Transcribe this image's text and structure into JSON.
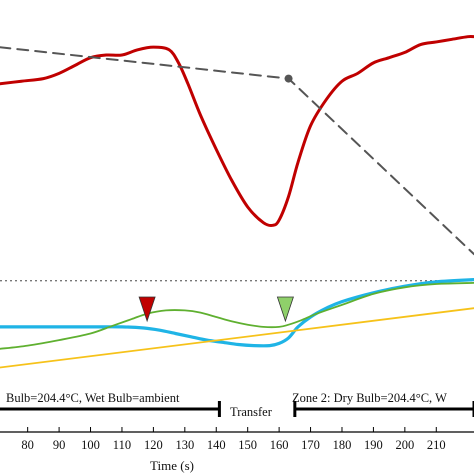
{
  "chart_data": {
    "type": "line",
    "title": "",
    "xlabel": "Time (s)",
    "ylabel": "",
    "xlim": [
      71.2,
      222
    ],
    "x_ticks": [
      80,
      90,
      100,
      110,
      120,
      130,
      140,
      150,
      160,
      170,
      180,
      190,
      200,
      210
    ],
    "grid": false,
    "upper_panel": {
      "ylim": [
        0,
        1
      ],
      "series": [
        {
          "color": "#c00000",
          "style": "solid",
          "x": [
            71,
            78,
            85,
            90,
            95,
            100,
            105,
            110,
            115,
            120,
            125,
            128,
            131,
            135,
            140,
            145,
            150,
            155,
            158,
            160,
            163,
            166,
            170,
            175,
            180,
            185,
            190,
            195,
            200,
            205,
            210,
            215,
            220,
            222
          ],
          "y": [
            0.68,
            0.69,
            0.7,
            0.72,
            0.75,
            0.78,
            0.79,
            0.79,
            0.81,
            0.82,
            0.81,
            0.76,
            0.68,
            0.56,
            0.43,
            0.31,
            0.21,
            0.15,
            0.14,
            0.16,
            0.25,
            0.38,
            0.52,
            0.62,
            0.69,
            0.72,
            0.76,
            0.78,
            0.8,
            0.83,
            0.84,
            0.85,
            0.86,
            0.86
          ]
        },
        {
          "color": "#555555",
          "style": "dashed",
          "x": [
            71,
            163,
            222
          ],
          "y": [
            0.82,
            0.7,
            0.03
          ],
          "marker_at_x": 163
        }
      ]
    },
    "lower_panel": {
      "ylim": [
        0,
        1
      ],
      "reference_line": {
        "style": "dotted",
        "color": "#777777",
        "y": 0.83
      },
      "series": [
        {
          "color": "#1fb4e6",
          "style": "solid",
          "x": [
            71,
            80,
            90,
            100,
            110,
            117,
            122,
            127,
            132,
            137,
            142,
            147,
            152,
            157,
            160,
            163,
            166,
            170,
            175,
            180,
            190,
            200,
            210,
            222
          ],
          "y": [
            0.41,
            0.41,
            0.41,
            0.41,
            0.41,
            0.4,
            0.38,
            0.35,
            0.32,
            0.29,
            0.27,
            0.25,
            0.24,
            0.24,
            0.26,
            0.31,
            0.41,
            0.5,
            0.58,
            0.64,
            0.72,
            0.78,
            0.82,
            0.84
          ]
        },
        {
          "color": "#5fb030",
          "style": "solid",
          "x": [
            71,
            80,
            90,
            100,
            107,
            113,
            118,
            124,
            130,
            135,
            140,
            145,
            150,
            155,
            160,
            163,
            167,
            172,
            180,
            190,
            200,
            210,
            222
          ],
          "y": [
            0.21,
            0.24,
            0.29,
            0.35,
            0.42,
            0.48,
            0.53,
            0.56,
            0.56,
            0.54,
            0.5,
            0.46,
            0.43,
            0.41,
            0.41,
            0.43,
            0.47,
            0.53,
            0.61,
            0.71,
            0.77,
            0.8,
            0.81
          ]
        },
        {
          "color": "#f6c21a",
          "style": "solid",
          "x": [
            71,
            222
          ],
          "y": [
            0.04,
            0.58
          ]
        }
      ],
      "markers": [
        {
          "x": 118,
          "color": "#c00000",
          "shape": "triangle-down"
        },
        {
          "x": 162,
          "color": "#8fd06a",
          "shape": "triangle-down"
        }
      ]
    },
    "annotations": [
      "Bulb=204.4°C, Wet Bulb=ambient",
      "Transfer",
      "Zone 2: Dry Bulb=204.4°C, W"
    ],
    "phase_bars": [
      {
        "label_index": 0,
        "x_start": 71.2,
        "x_end": 141
      },
      {
        "label_index": 2,
        "x_start": 165,
        "x_end": 222
      }
    ]
  }
}
